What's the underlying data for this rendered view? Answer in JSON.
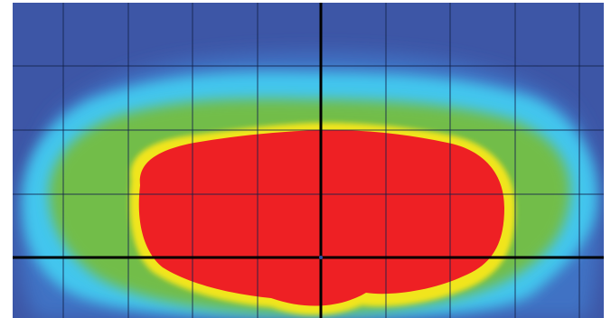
{
  "image": {
    "kind": "false-color intensity map",
    "colormap": [
      "#3d56a6",
      "#3f6cc0",
      "#3fa3e2",
      "#45d4f0",
      "#7cc25e",
      "#69b83e",
      "#f3ea18",
      "#ee2024"
    ],
    "background_color": "#3d56a6",
    "grid": {
      "columns": 9,
      "rows": 5,
      "visible": true,
      "line_color": "#101833"
    },
    "crosshair": {
      "visible": true,
      "color": "#000000"
    }
  }
}
